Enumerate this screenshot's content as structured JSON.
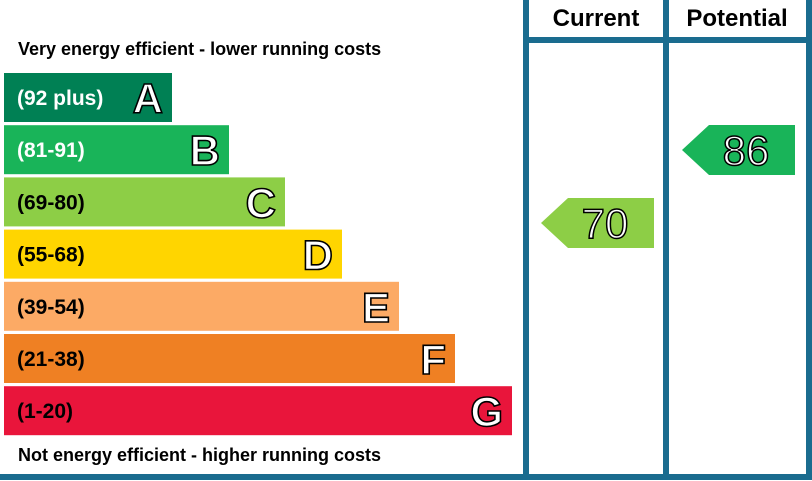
{
  "chart_data": {
    "type": "bar",
    "top_note": "Very energy efficient - lower running costs",
    "bottom_note": "Not energy efficient - higher running costs",
    "columns": {
      "current": "Current",
      "potential": "Potential"
    },
    "bands": [
      {
        "letter": "A",
        "range": "(92 plus)",
        "color": "#008054",
        "text_color": "#ffffff"
      },
      {
        "letter": "B",
        "range": "(81-91)",
        "color": "#19b459",
        "text_color": "#ffffff"
      },
      {
        "letter": "C",
        "range": "(69-80)",
        "color": "#8dce46",
        "text_color": "#000000"
      },
      {
        "letter": "D",
        "range": "(55-68)",
        "color": "#ffd500",
        "text_color": "#000000"
      },
      {
        "letter": "E",
        "range": "(39-54)",
        "color": "#fcaa65",
        "text_color": "#000000"
      },
      {
        "letter": "F",
        "range": "(21-38)",
        "color": "#ef8023",
        "text_color": "#000000"
      },
      {
        "letter": "G",
        "range": "(1-20)",
        "color": "#e9153b",
        "text_color": "#000000"
      }
    ],
    "current": {
      "value": 70,
      "label": "70",
      "band": "C",
      "color": "#8dce46"
    },
    "potential": {
      "value": 86,
      "label": "86",
      "band": "B",
      "color": "#19b459"
    }
  },
  "colors": {
    "frame": "#1a6c8f"
  }
}
